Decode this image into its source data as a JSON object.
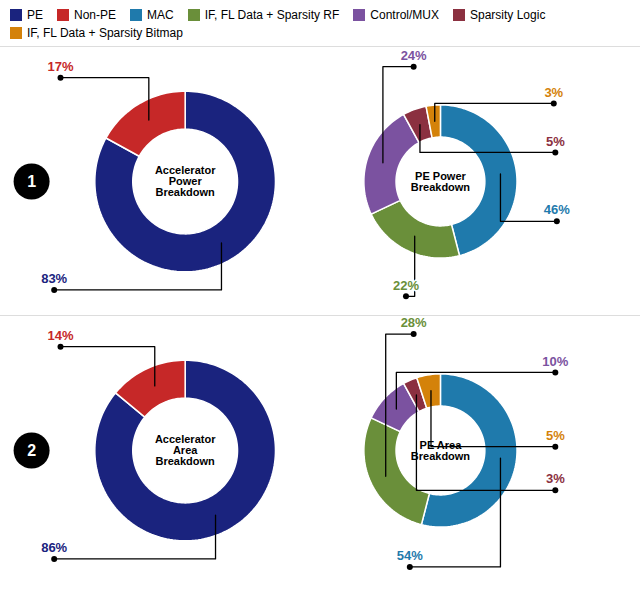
{
  "chart_data": [
    {
      "type": "pie",
      "title": "Accelerator\nPower\nBreakdown",
      "categories": [
        "PE",
        "Non-PE"
      ],
      "values": [
        83,
        17
      ],
      "value_labels": [
        "83%",
        "17%"
      ],
      "colors": [
        "#1a237e",
        "#c62828"
      ],
      "data_labels": true,
      "legend": "top",
      "annotations": [
        "1"
      ]
    },
    {
      "type": "pie",
      "title": "PE Power\nBreakdown",
      "categories": [
        "MAC",
        "IF, FL Data + Sparsity RF",
        "Control/MUX",
        "Sparsity Logic",
        "IF, FL Data + Sparsity Bitmap"
      ],
      "values": [
        46,
        22,
        24,
        5,
        3
      ],
      "value_labels": [
        "46%",
        "22%",
        "24%",
        "5%",
        "3%"
      ],
      "colors": [
        "#1f7aac",
        "#6a8f3a",
        "#7b52a0",
        "#8b3040",
        "#d4820a"
      ],
      "data_labels": true,
      "legend": "top"
    },
    {
      "type": "pie",
      "title": "Accelerator\nArea\nBreakdown",
      "categories": [
        "PE",
        "Non-PE"
      ],
      "values": [
        86,
        14
      ],
      "value_labels": [
        "86%",
        "14%"
      ],
      "colors": [
        "#1a237e",
        "#c62828"
      ],
      "data_labels": true,
      "legend": "top",
      "annotations": [
        "2"
      ]
    },
    {
      "type": "pie",
      "title": "PE Area\nBreakdown",
      "categories": [
        "MAC",
        "IF, FL Data + Sparsity RF",
        "Control/MUX",
        "Sparsity Logic",
        "IF, FL Data + Sparsity Bitmap"
      ],
      "values": [
        54,
        28,
        10,
        3,
        5
      ],
      "value_labels": [
        "54%",
        "28%",
        "10%",
        "3%",
        "5%"
      ],
      "colors": [
        "#1f7aac",
        "#6a8f3a",
        "#7b52a0",
        "#8b3040",
        "#d4820a"
      ],
      "data_labels": true,
      "legend": "top"
    }
  ]
}
